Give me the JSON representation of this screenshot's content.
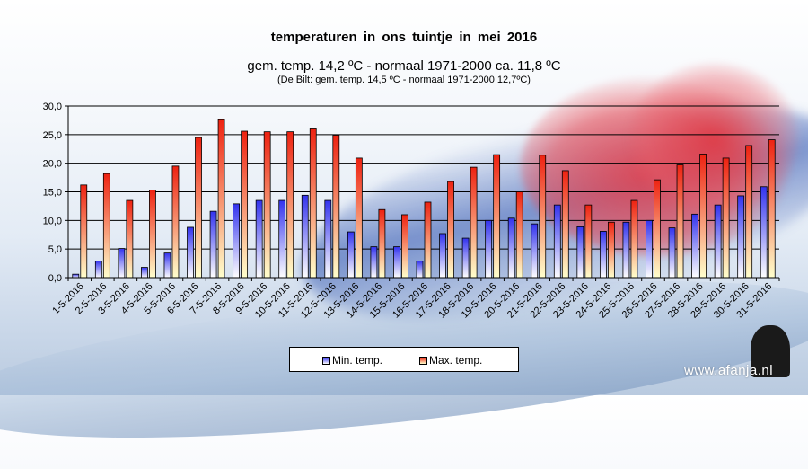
{
  "chart_data": {
    "type": "bar",
    "title": "temperaturen  in  ons tuintje  in  mei  2016",
    "subtitle": "gem.  temp.  14,2 ºC - normaal 1971-2000  ca. 11,8 ºC",
    "subtitle2": "(De Bilt: gem. temp. 14,5 ºC - normaal 1971-2000 12,7ºC)",
    "xlabel": "",
    "ylabel": "",
    "ylim": [
      0,
      30
    ],
    "yticks": [
      0,
      5,
      10,
      15,
      20,
      25,
      30
    ],
    "ytick_labels": [
      "0,0",
      "5,0",
      "10,0",
      "15,0",
      "20,0",
      "25,0",
      "30,0"
    ],
    "grid": true,
    "legend_position": "bottom",
    "categories": [
      "1-5-2016",
      "2-5-2016",
      "3-5-2016",
      "4-5-2016",
      "5-5-2016",
      "6-5-2016",
      "7-5-2016",
      "8-5-2016",
      "9-5-2016",
      "10-5-2016",
      "11-5-2016",
      "12-5-2016",
      "13-5-2016",
      "14-5-2016",
      "15-5-2016",
      "16-5-2016",
      "17-5-2016",
      "18-5-2016",
      "19-5-2016",
      "20-5-2016",
      "21-5-2016",
      "22-5-2016",
      "23-5-2016",
      "24-5-2016",
      "25-5-2016",
      "26-5-2016",
      "27-5-2016",
      "28-5-2016",
      "29-5-2016",
      "30-5-2016",
      "31-5-2016"
    ],
    "series": [
      {
        "name": "Min. temp.",
        "color_top": "#3333ee",
        "color_bottom": "#ffffff",
        "values": [
          0.6,
          2.9,
          5.1,
          1.8,
          4.3,
          8.8,
          11.6,
          12.9,
          13.5,
          13.5,
          14.4,
          13.5,
          8.0,
          5.4,
          5.4,
          2.9,
          7.7,
          6.9,
          10.0,
          10.4,
          9.4,
          12.7,
          8.9,
          8.1,
          9.7,
          10.0,
          8.7,
          11.1,
          12.7,
          14.3,
          15.9
        ]
      },
      {
        "name": "Max. temp.",
        "color_top": "#ee2211",
        "color_bottom": "#ffffcc",
        "values": [
          16.2,
          18.2,
          13.5,
          15.3,
          19.5,
          24.5,
          27.6,
          25.6,
          25.5,
          25.5,
          26.0,
          24.9,
          20.9,
          11.9,
          11.0,
          13.2,
          16.8,
          19.3,
          21.5,
          15.0,
          21.4,
          18.7,
          12.7,
          9.7,
          13.5,
          17.1,
          19.7,
          21.6,
          20.9,
          23.1,
          24.1
        ]
      }
    ]
  },
  "watermark": "www.afanja.nl"
}
